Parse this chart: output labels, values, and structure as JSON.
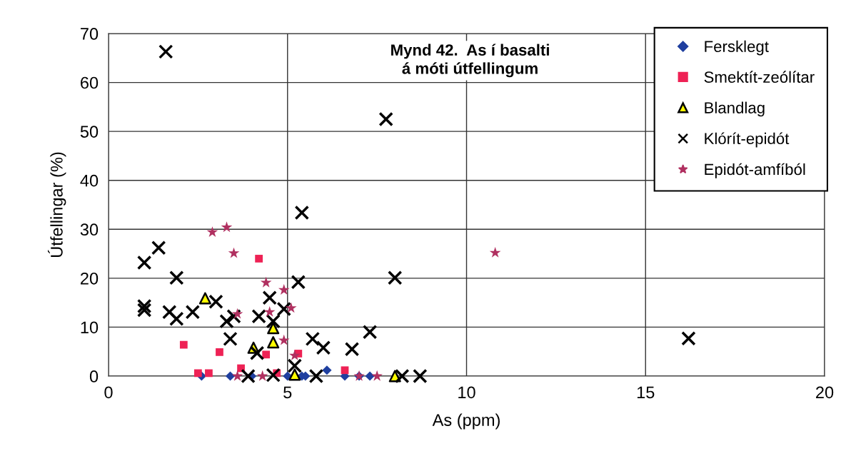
{
  "chart_data": {
    "type": "scatter",
    "title": "Mynd 42.  As í basalti\ná móti útfellingum",
    "xlabel": "As (ppm)",
    "ylabel": "Útfellingar (%)",
    "xlim": [
      0,
      20
    ],
    "xticks": [
      0,
      5,
      10,
      15,
      20
    ],
    "ylim": [
      0,
      70
    ],
    "yticks": [
      0,
      10,
      20,
      30,
      40,
      50,
      60,
      70
    ],
    "grid": true,
    "legend": "top right",
    "series": [
      {
        "name": "Fersklegt",
        "color": "#1f3f9f",
        "marker": "diamond",
        "x": [
          2.6,
          3.4,
          4.0,
          5.0,
          5.4,
          5.5,
          6.1,
          6.6,
          7.0,
          7.3
        ],
        "values": [
          0,
          0,
          0,
          0,
          0,
          0,
          1.2,
          0,
          0,
          0
        ]
      },
      {
        "name": "Smektít-zeólítar",
        "color": "#ee2255",
        "marker": "square",
        "x": [
          2.1,
          2.5,
          2.8,
          3.1,
          3.7,
          4.2,
          4.4,
          4.7,
          5.3,
          6.6
        ],
        "values": [
          6.4,
          0.6,
          0.6,
          4.9,
          1.6,
          24.0,
          4.4,
          0.6,
          4.6,
          1.2
        ]
      },
      {
        "name": "Blandlag",
        "color": "#ffff00",
        "marker": "triangle",
        "x": [
          2.7,
          4.05,
          4.6,
          4.6,
          5.2,
          8.0
        ],
        "values": [
          15.9,
          5.8,
          9.8,
          6.9,
          0.3,
          0
        ]
      },
      {
        "name": "Klórít-epidót",
        "color": "#000000",
        "marker": "cross",
        "x": [
          1.6,
          1.0,
          1.4,
          1.0,
          1.0,
          1.9,
          1.7,
          1.9,
          2.35,
          3.0,
          3.3,
          3.5,
          3.4,
          4.2,
          4.5,
          4.9,
          4.6,
          4.15,
          3.9,
          4.6,
          5.3,
          5.4,
          5.2,
          5.8,
          5.7,
          6.0,
          6.8,
          7.3,
          7.75,
          8.0,
          8.2,
          8.7,
          16.2
        ],
        "values": [
          66.3,
          23.2,
          26.2,
          13.5,
          14.3,
          20.1,
          13.1,
          11.7,
          13.1,
          15.2,
          11.2,
          12.2,
          7.6,
          12.2,
          16.0,
          13.7,
          11.2,
          4.7,
          0,
          0.2,
          19.2,
          33.4,
          2.1,
          0,
          7.6,
          5.8,
          5.5,
          9.0,
          52.5,
          20.1,
          0,
          0,
          7.7
        ]
      },
      {
        "name": "Epidót-amfíból",
        "color": "#b03060",
        "marker": "star",
        "x": [
          2.9,
          3.3,
          3.5,
          4.4,
          4.9,
          5.1,
          4.5,
          3.6,
          4.9,
          5.2,
          3.6,
          4.3,
          7.0,
          7.5,
          10.8
        ],
        "values": [
          29.4,
          30.4,
          25.1,
          19.1,
          17.6,
          13.9,
          13.1,
          12.7,
          7.3,
          4.2,
          0,
          0,
          0,
          0,
          25.2
        ]
      }
    ]
  }
}
